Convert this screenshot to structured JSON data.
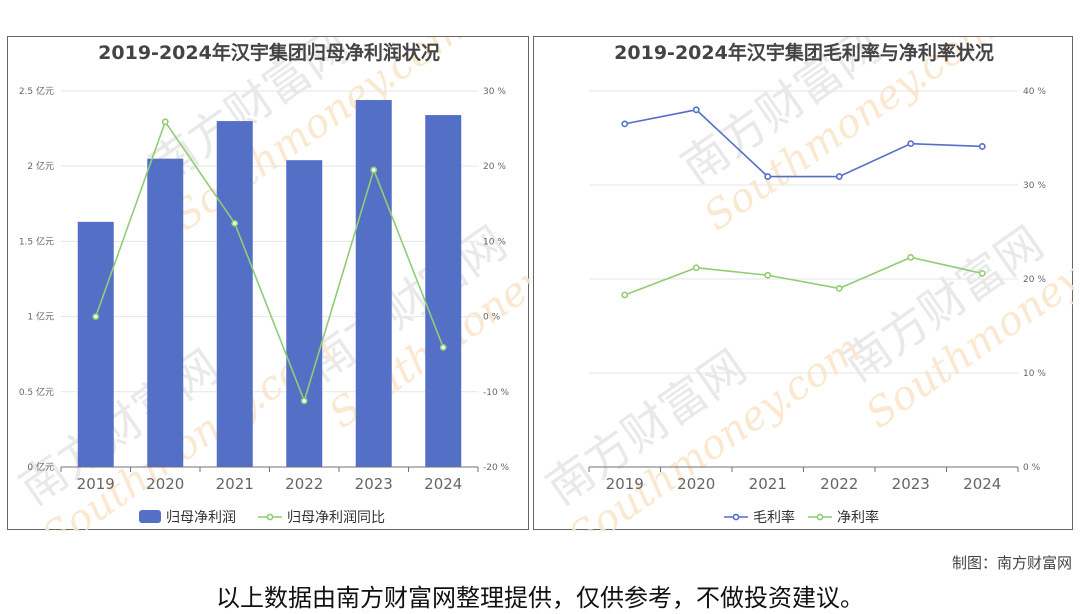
{
  "watermark": {
    "text_cn": "南方财富网",
    "text_en": "Southmoney.com"
  },
  "credit": "制图：南方财富网",
  "disclaimer": "以上数据由南方财富网整理提供，仅供参考，不做投资建议。",
  "colors": {
    "bar": "#5470c6",
    "line_green": "#91cc75",
    "line_blue": "#5470c6",
    "axis_text": "#666666",
    "grid": "#e6e6e6"
  },
  "chart_data": [
    {
      "type": "bar",
      "title": "2019-2024年汉宇集团归母净利润状况",
      "categories": [
        "2019",
        "2020",
        "2021",
        "2022",
        "2023",
        "2024"
      ],
      "series": [
        {
          "name": "归母净利润",
          "kind": "bar",
          "axis": "left",
          "unit": "亿元",
          "values": [
            1.63,
            2.05,
            2.3,
            2.04,
            2.44,
            2.34
          ]
        },
        {
          "name": "归母净利润同比",
          "kind": "line",
          "axis": "right",
          "unit": "%",
          "values": [
            0.0,
            25.9,
            12.4,
            -11.2,
            19.5,
            -4.1
          ]
        }
      ],
      "y_left": {
        "min": 0,
        "max": 2.5,
        "ticks": [
          "0 亿元",
          "0.5 亿元",
          "1 亿元",
          "1.5 亿元",
          "2 亿元",
          "2.5 亿元"
        ]
      },
      "y_right": {
        "min": -20,
        "max": 30,
        "ticks": [
          "-20 %",
          "-10 %",
          "0 %",
          "10 %",
          "20 %",
          "30 %"
        ]
      },
      "grid": true,
      "legend": "bottom"
    },
    {
      "type": "line",
      "title": "2019-2024年汉宇集团毛利率与净利率状况",
      "categories": [
        "2019",
        "2020",
        "2021",
        "2022",
        "2023",
        "2024"
      ],
      "series": [
        {
          "name": "毛利率",
          "color": "#5470c6",
          "values": [
            36.5,
            38.0,
            30.9,
            30.9,
            34.4,
            34.1
          ]
        },
        {
          "name": "净利率",
          "color": "#91cc75",
          "values": [
            18.3,
            21.2,
            20.4,
            19.0,
            22.3,
            20.6
          ]
        }
      ],
      "y_right": {
        "min": 0,
        "max": 40,
        "ticks": [
          "0 %",
          "10 %",
          "20 %",
          "30 %",
          "40 %"
        ]
      },
      "grid": true,
      "legend": "bottom"
    }
  ]
}
